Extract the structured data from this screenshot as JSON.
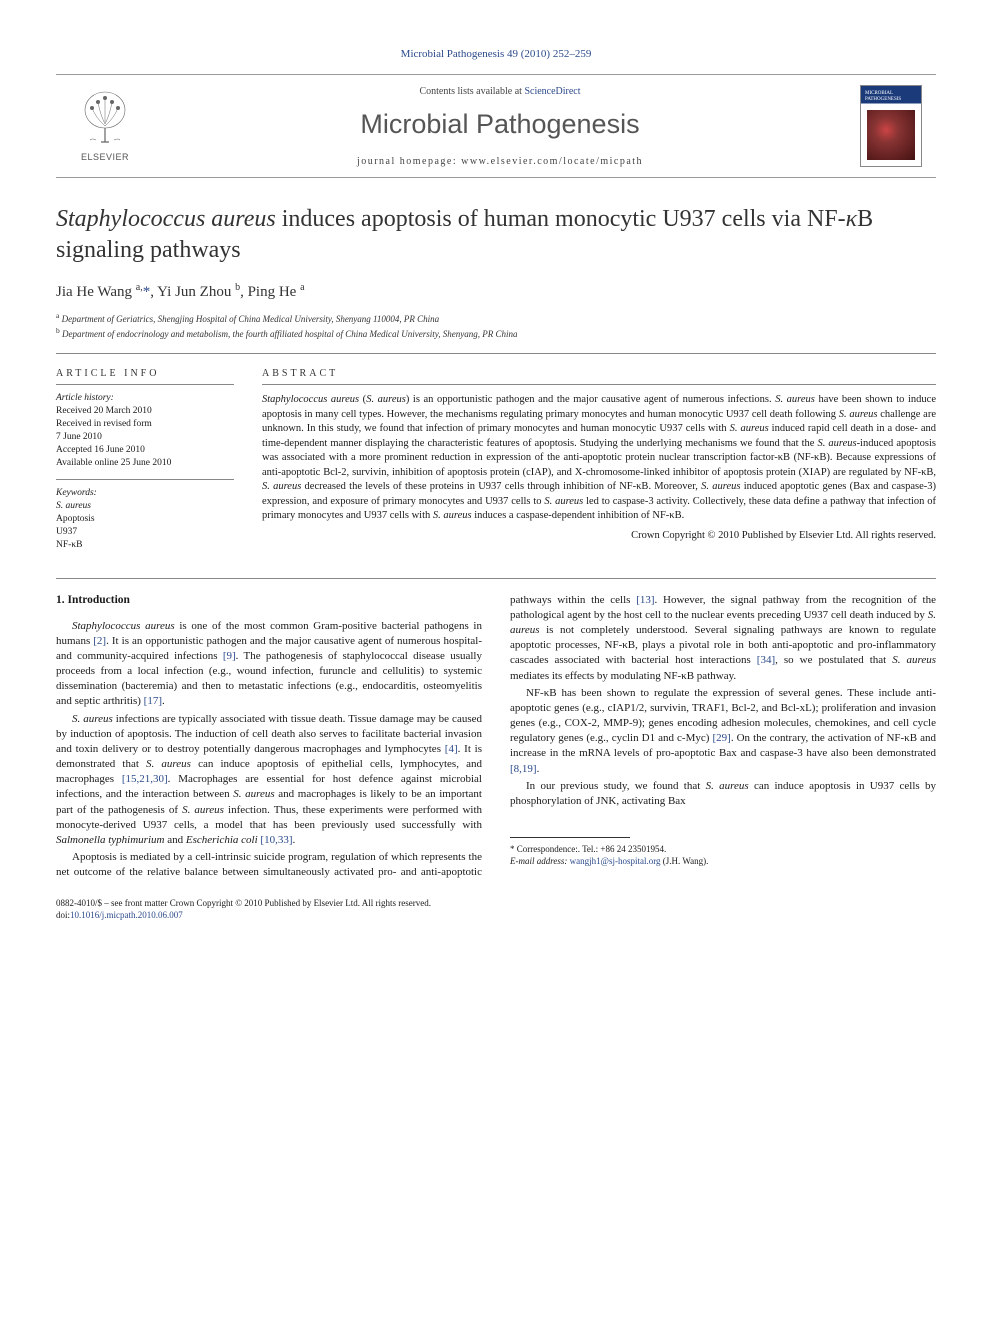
{
  "header": {
    "citation": "Microbial Pathogenesis 49 (2010) 252–259",
    "contents_text": "Contents lists available at ",
    "contents_link": "ScienceDirect",
    "journal_name": "Microbial Pathogenesis",
    "homepage_prefix": "journal homepage: ",
    "homepage_url": "www.elsevier.com/locate/micpath",
    "publisher": "ELSEVIER"
  },
  "article": {
    "title_html": "<em>Staphylococcus aureus</em> induces apoptosis of human monocytic U937 cells via NF-<em>κ</em>B signaling pathways",
    "authors_html": "Jia He Wang <sup>a,</sup><a href=\"#\">*</a>, Yi Jun Zhou <sup>b</sup>, Ping He <sup>a</sup>",
    "affiliations": [
      {
        "sup": "a",
        "text": "Department of Geriatrics, Shengjing Hospital of China Medical University, Shenyang 110004, PR China"
      },
      {
        "sup": "b",
        "text": "Department of endocrinology and metabolism, the fourth affiliated hospital of China Medical University, Shenyang, PR China"
      }
    ]
  },
  "article_info": {
    "head": "ARTICLE INFO",
    "history_head": "Article history:",
    "history": [
      "Received 20 March 2010",
      "Received in revised form",
      "7 June 2010",
      "Accepted 16 June 2010",
      "Available online 25 June 2010"
    ],
    "keywords_head": "Keywords:",
    "keywords": [
      "S. aureus",
      "Apoptosis",
      "U937",
      "NF-κB"
    ]
  },
  "abstract": {
    "head": "ABSTRACT",
    "text_html": "<em>Staphylococcus aureus</em> (<em>S. aureus</em>) is an opportunistic pathogen and the major causative agent of numerous infections. <em>S. aureus</em> have been shown to induce apoptosis in many cell types. However, the mechanisms regulating primary monocytes and human monocytic U937 cell death following <em>S. aureus</em> challenge are unknown. In this study, we found that infection of primary monocytes and human monocytic U937 cells with <em>S. aureus</em> induced rapid cell death in a dose- and time-dependent manner displaying the characteristic features of apoptosis. Studying the underlying mechanisms we found that the <em>S. aureus</em>-induced apoptosis was associated with a more prominent reduction in expression of the anti-apoptotic protein nuclear transcription factor-κB (NF-κB). Because expressions of anti-apoptotic Bcl-2, survivin, inhibition of apoptosis protein (cIAP), and X-chromosome-linked inhibitor of apoptosis protein (XIAP) are regulated by NF-κB, <em>S. aureus</em> decreased the levels of these proteins in U937 cells through inhibition of NF-κB. Moreover, <em>S. aureus</em> induced apoptotic genes (Bax and caspase-3) expression, and exposure of primary monocytes and U937 cells to <em>S. aureus</em> led to caspase-3 activity. Collectively, these data define a pathway that infection of primary monocytes and U937 cells with <em>S. aureus</em> induces a caspase-dependent inhibition of NF-κB.",
    "copyright": "Crown Copyright © 2010 Published by Elsevier Ltd. All rights reserved."
  },
  "body": {
    "section_head": "1. Introduction",
    "paragraphs": [
      "<em>Staphylococcus aureus</em> is one of the most common Gram-positive bacterial pathogens in humans <a class=\"ref-link\" href=\"#\">[2]</a>. It is an opportunistic pathogen and the major causative agent of numerous hospital- and community-acquired infections <a class=\"ref-link\" href=\"#\">[9]</a>. The pathogenesis of staphylococcal disease usually proceeds from a local infection (e.g., wound infection, furuncle and cellulitis) to systemic dissemination (bacteremia) and then to metastatic infections (e.g., endocarditis, osteomyelitis and septic arthritis) <a class=\"ref-link\" href=\"#\">[17]</a>.",
      "<em>S. aureus</em> infections are typically associated with tissue death. Tissue damage may be caused by induction of apoptosis. The induction of cell death also serves to facilitate bacterial invasion and toxin delivery or to destroy potentially dangerous macrophages and lymphocytes <a class=\"ref-link\" href=\"#\">[4]</a>. It is demonstrated that <em>S. aureus</em> can induce apoptosis of epithelial cells, lymphocytes, and macrophages <a class=\"ref-link\" href=\"#\">[15,21,30]</a>. Macrophages are essential for host defence against microbial infections, and the interaction between <em>S. aureus</em> and macrophages is likely to be an important part of the pathogenesis of <em>S. aureus</em> infection. Thus, these experiments were performed with monocyte-derived U937 cells, a model that has been previously used successfully with <em>Salmonella typhimurium</em> and <em>Escherichia coli</em> <a class=\"ref-link\" href=\"#\">[10,33]</a>.",
      "Apoptosis is mediated by a cell-intrinsic suicide program, regulation of which represents the net outcome of the relative balance between simultaneously activated pro- and anti-apoptotic pathways within the cells <a class=\"ref-link\" href=\"#\">[13]</a>. However, the signal pathway from the recognition of the pathological agent by the host cell to the nuclear events preceding U937 cell death induced by <em>S. aureus</em> is not completely understood. Several signaling pathways are known to regulate apoptotic processes, NF-κB, plays a pivotal role in both anti-apoptotic and pro-inflammatory cascades associated with bacterial host interactions <a class=\"ref-link\" href=\"#\">[34]</a>, so we postulated that <em>S. aureus</em> mediates its effects by modulating NF-κB pathway.",
      "NF-κB has been shown to regulate the expression of several genes. These include anti-apoptotic genes (e.g., cIAP1/2, survivin, TRAF1, Bcl-2, and Bcl-xL); proliferation and invasion genes (e.g., COX-2, MMP-9); genes encoding adhesion molecules, chemokines, and cell cycle regulatory genes (e.g., cyclin D1 and c-Myc) <a class=\"ref-link\" href=\"#\">[29]</a>. On the contrary, the activation of NF-κB and increase in the mRNA levels of pro-apoptotic Bax and caspase-3 have also been demonstrated <a class=\"ref-link\" href=\"#\">[8,19]</a>.",
      "In our previous study, we found that <em>S. aureus</em> can induce apoptosis in U937 cells by phosphorylation of JNK, activating Bax"
    ]
  },
  "footnote": {
    "corr": "* Correspondence:. Tel.: +86 24 23501954.",
    "email_label": "E-mail address: ",
    "email": "wangjh1@sj-hospital.org",
    "email_suffix": " (J.H. Wang)."
  },
  "bottom": {
    "issn": "0882-4010/$ – see front matter Crown Copyright © 2010 Published by Elsevier Ltd. All rights reserved.",
    "doi_label": "doi:",
    "doi": "10.1016/j.micpath.2010.06.007"
  },
  "colors": {
    "link": "#2b4a8b",
    "text": "#1a1a1a",
    "border": "#888888"
  }
}
